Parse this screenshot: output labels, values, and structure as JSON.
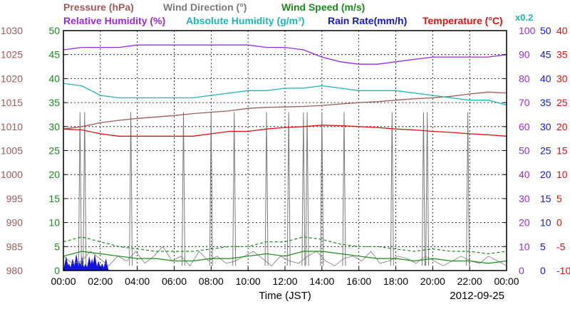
{
  "chart_data": {
    "type": "line",
    "legend": {
      "row1": [
        {
          "text": "Pressure (hPa)",
          "color": "#a05a5a"
        },
        {
          "text": "Wind Direction (°)",
          "color": "#7a7a7a"
        },
        {
          "text": "Wind Speed (m/s)",
          "color": "#1a8a1a"
        }
      ],
      "row2": [
        {
          "text": "Relative Humidity (%)",
          "color": "#9a2ae0"
        },
        {
          "text": "Absolute Humidity (g/m³)",
          "color": "#20b4b4"
        },
        {
          "text": "Rain Rate(mm/h)",
          "color": "#1414e0"
        },
        {
          "text": "Temperature (°C)",
          "color": "#e01010"
        }
      ],
      "note": {
        "text": "x0.2",
        "color": "#20b4b4"
      }
    },
    "xlabel": "Time (JST)",
    "date": "2012-09-25",
    "x_ticks": [
      "00:00",
      "02:00",
      "04:00",
      "06:00",
      "08:00",
      "10:00",
      "12:00",
      "14:00",
      "16:00",
      "18:00",
      "20:00",
      "22:00",
      "00:00"
    ],
    "axes": {
      "pressure": {
        "ticks": [
          "1030",
          "1025",
          "1020",
          "1015",
          "1010",
          "1005",
          "1000",
          "995",
          "990",
          "985",
          "980"
        ],
        "color": "#a05a5a",
        "range": [
          980,
          1030
        ]
      },
      "wind_speed": {
        "ticks": [
          "50",
          "45",
          "40",
          "35",
          "30",
          "25",
          "20",
          "15",
          "10",
          "5",
          "0"
        ],
        "color": "#1a8a1a",
        "range": [
          0,
          50
        ]
      },
      "relative_humidity": {
        "ticks": [
          "100",
          "90",
          "80",
          "70",
          "60",
          "50",
          "40",
          "30",
          "20",
          "10",
          "0"
        ],
        "color": "#9a2ae0",
        "range": [
          0,
          100
        ]
      },
      "rain_rate": {
        "ticks": [
          "50",
          "45",
          "40",
          "35",
          "30",
          "25",
          "20",
          "15",
          "10",
          "5",
          "0"
        ],
        "color": "#1414e0",
        "range": [
          0,
          50
        ]
      },
      "temperature": {
        "ticks": [
          "40",
          "35",
          "30",
          "25",
          "20",
          "15",
          "10",
          "5",
          "0",
          "-5",
          "-10"
        ],
        "color": "#e01010",
        "range": [
          -10,
          40
        ]
      }
    },
    "x_range_hours": [
      0,
      24
    ],
    "series": [
      {
        "name": "Pressure (hPa)",
        "color": "#a05a5a",
        "axis": "pressure",
        "x": [
          0,
          1,
          2,
          3,
          4,
          5,
          6,
          7,
          8,
          9,
          10,
          11,
          12,
          13,
          14,
          15,
          16,
          17,
          18,
          19,
          20,
          21,
          22,
          23,
          24
        ],
        "values": [
          1009.5,
          1010.0,
          1010.8,
          1011.3,
          1011.7,
          1012.0,
          1012.3,
          1012.7,
          1013.0,
          1013.3,
          1013.8,
          1014.0,
          1014.1,
          1014.2,
          1014.4,
          1014.7,
          1015.0,
          1015.2,
          1015.5,
          1015.8,
          1016.0,
          1016.3,
          1016.8,
          1017.2,
          1017.0
        ]
      },
      {
        "name": "Relative Humidity (%)",
        "color": "#9a2ae0",
        "axis": "relative_humidity",
        "x": [
          0,
          1,
          2,
          3,
          4,
          5,
          6,
          7,
          8,
          9,
          10,
          11,
          12,
          13,
          14,
          15,
          16,
          17,
          18,
          19,
          20,
          21,
          22,
          23,
          24
        ],
        "values": [
          92,
          93,
          93,
          93,
          94,
          94,
          94,
          94,
          94,
          94,
          94,
          93,
          93,
          92,
          89,
          87,
          86,
          86,
          87,
          88,
          89,
          89,
          89,
          89,
          90
        ]
      },
      {
        "name": "Absolute Humidity (g/m³)",
        "color": "#20b4b4",
        "axis": "relative_humidity",
        "x": [
          0,
          1,
          2,
          3,
          4,
          5,
          6,
          7,
          8,
          9,
          10,
          11,
          12,
          13,
          14,
          15,
          16,
          17,
          18,
          19,
          20,
          21,
          22,
          23,
          24
        ],
        "values": [
          78,
          77,
          73,
          72,
          72,
          72,
          72,
          72,
          73,
          74,
          75,
          75,
          76,
          76,
          77,
          76,
          75,
          75,
          75,
          74,
          73,
          72,
          71,
          71,
          69
        ]
      },
      {
        "name": "Temperature (°C)",
        "color": "#e01010",
        "axis": "temperature",
        "x": [
          0,
          1,
          2,
          3,
          4,
          5,
          6,
          7,
          8,
          9,
          10,
          11,
          12,
          13,
          14,
          15,
          16,
          17,
          18,
          19,
          20,
          21,
          22,
          23,
          24
        ],
        "values": [
          19.5,
          19.3,
          18.5,
          18.0,
          18.0,
          18.0,
          18.0,
          18.0,
          18.5,
          19.0,
          19.0,
          19.5,
          19.8,
          20.0,
          20.3,
          20.2,
          20.0,
          19.8,
          19.5,
          19.3,
          19.0,
          18.8,
          18.5,
          18.3,
          18.0
        ]
      },
      {
        "name": "Wind Direction (°)",
        "color": "#7a7a7a",
        "axis": "wind_speed",
        "style": "spikes",
        "baseline": [
          3,
          1.5,
          2,
          4,
          2.5,
          1,
          3,
          2,
          4,
          1.5,
          3,
          5,
          2,
          3,
          1,
          4,
          2,
          3,
          1.5,
          2,
          3,
          4,
          2.5,
          1,
          3,
          2,
          1.5,
          3,
          4,
          2,
          1,
          2.5,
          3,
          2,
          4,
          1.5,
          2,
          3,
          2.5,
          1.5,
          3,
          2,
          1,
          2,
          3,
          2,
          1.5,
          3,
          2,
          1
        ],
        "spike_hours": [
          0.9,
          1.15,
          3.65,
          6.5,
          8.0,
          9.25,
          11.0,
          12.2,
          13.0,
          13.2,
          14.0,
          15.2,
          17.8,
          19.5,
          19.7,
          21.9
        ],
        "spike_values": [
          33,
          33,
          33,
          33,
          33,
          33,
          33,
          33,
          33,
          33,
          33,
          33,
          33,
          33,
          33,
          33
        ]
      },
      {
        "name": "Wind Speed (m/s)",
        "color": "#1a8a1a",
        "axis": "wind_speed",
        "x": [
          0,
          1,
          2,
          3,
          4,
          5,
          6,
          7,
          8,
          9,
          10,
          11,
          12,
          13,
          14,
          15,
          16,
          17,
          18,
          19,
          20,
          21,
          22,
          23,
          24
        ],
        "values": [
          3,
          4,
          3.5,
          3,
          2.5,
          2.5,
          2,
          2,
          2.5,
          2.5,
          3,
          3.5,
          3,
          4,
          4,
          3.5,
          3,
          2.5,
          2.5,
          2,
          2.5,
          2,
          2,
          1.5,
          2
        ],
        "gust_values": [
          6,
          7,
          6,
          5,
          4.5,
          4,
          4,
          4,
          4.5,
          5,
          5,
          6,
          6,
          7,
          6.5,
          5.5,
          5,
          5,
          4.5,
          4,
          4.5,
          4,
          4,
          3.5,
          4
        ]
      },
      {
        "name": "Rain Rate(mm/h)",
        "color": "#1414e0",
        "axis": "rain_rate",
        "rain_hours": [
          0.15,
          0.3,
          0.5,
          0.7,
          0.85,
          1.0,
          1.2,
          1.4,
          1.55,
          1.7,
          1.9,
          2.1,
          2.3
        ],
        "rain_values": [
          3,
          1.5,
          2.5,
          3.5,
          2,
          3,
          1.5,
          3,
          2.5,
          3.5,
          2,
          1.5,
          2.5
        ]
      }
    ]
  }
}
